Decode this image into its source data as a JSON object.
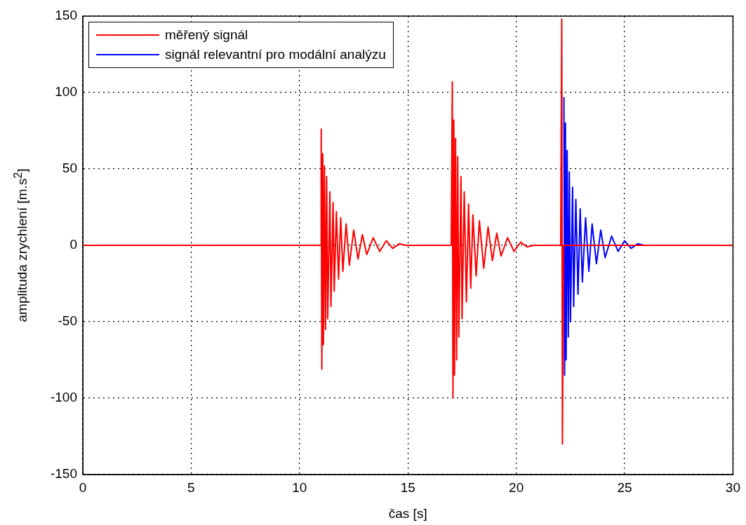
{
  "chart_data": {
    "type": "line",
    "xlabel": "čas [s]",
    "ylabel": "amplituda zrychlení [m.s$^{2}$]",
    "xlim": [
      0,
      30
    ],
    "xticks": [
      0,
      5,
      10,
      15,
      20,
      25,
      30
    ],
    "ylim": [
      -150,
      150
    ],
    "yticks": [
      -150,
      -100,
      -50,
      0,
      50,
      100,
      150
    ],
    "grid": true,
    "legend": "top left",
    "marker": "none",
    "line_style": "solid",
    "series": [
      {
        "name": "měřený signál",
        "color": "#ff0000",
        "x": [
          0,
          10.98,
          11.0,
          11.03,
          11.07,
          11.1,
          11.15,
          11.2,
          11.25,
          11.3,
          11.4,
          11.45,
          11.55,
          11.6,
          11.7,
          11.8,
          11.9,
          12.0,
          12.15,
          12.3,
          12.5,
          12.7,
          12.9,
          13.1,
          13.4,
          13.7,
          14.0,
          14.3,
          14.6,
          14.9,
          17.0,
          17.05,
          17.08,
          17.12,
          17.15,
          17.2,
          17.25,
          17.3,
          17.35,
          17.45,
          17.5,
          17.6,
          17.7,
          17.8,
          17.9,
          18.0,
          18.15,
          18.3,
          18.5,
          18.7,
          18.9,
          19.1,
          19.3,
          19.6,
          19.9,
          20.2,
          20.5,
          20.8,
          22.05,
          22.1,
          22.13,
          22.18,
          30
        ],
        "values": [
          0,
          0,
          76,
          -81,
          60,
          -65,
          52,
          -55,
          45,
          -48,
          35,
          -40,
          28,
          -30,
          22,
          -22,
          18,
          -17,
          14,
          -13,
          10,
          -9,
          7,
          -6,
          5,
          -4,
          3,
          -2,
          1,
          0,
          0,
          107,
          -100,
          82,
          -85,
          70,
          -75,
          58,
          -60,
          45,
          -48,
          35,
          -37,
          27,
          -28,
          20,
          -20,
          16,
          -15,
          12,
          -10,
          8,
          -7,
          5,
          -4,
          2,
          -1,
          0,
          0,
          148,
          -130,
          0,
          0
        ]
      },
      {
        "name": "signál relevantní pro modální analýzu",
        "color": "#0000ff",
        "x": [
          22.2,
          22.23,
          22.27,
          22.3,
          22.35,
          22.4,
          22.45,
          22.5,
          22.6,
          22.65,
          22.75,
          22.85,
          22.95,
          23.05,
          23.2,
          23.35,
          23.5,
          23.7,
          23.9,
          24.1,
          24.4,
          24.7,
          25.0,
          25.3,
          25.6,
          25.9
        ],
        "values": [
          97,
          -85,
          80,
          -75,
          62,
          -60,
          48,
          -50,
          38,
          -40,
          30,
          -32,
          24,
          -24,
          18,
          -17,
          14,
          -12,
          10,
          -8,
          6,
          -4,
          3,
          -2,
          1,
          0
        ]
      }
    ]
  }
}
